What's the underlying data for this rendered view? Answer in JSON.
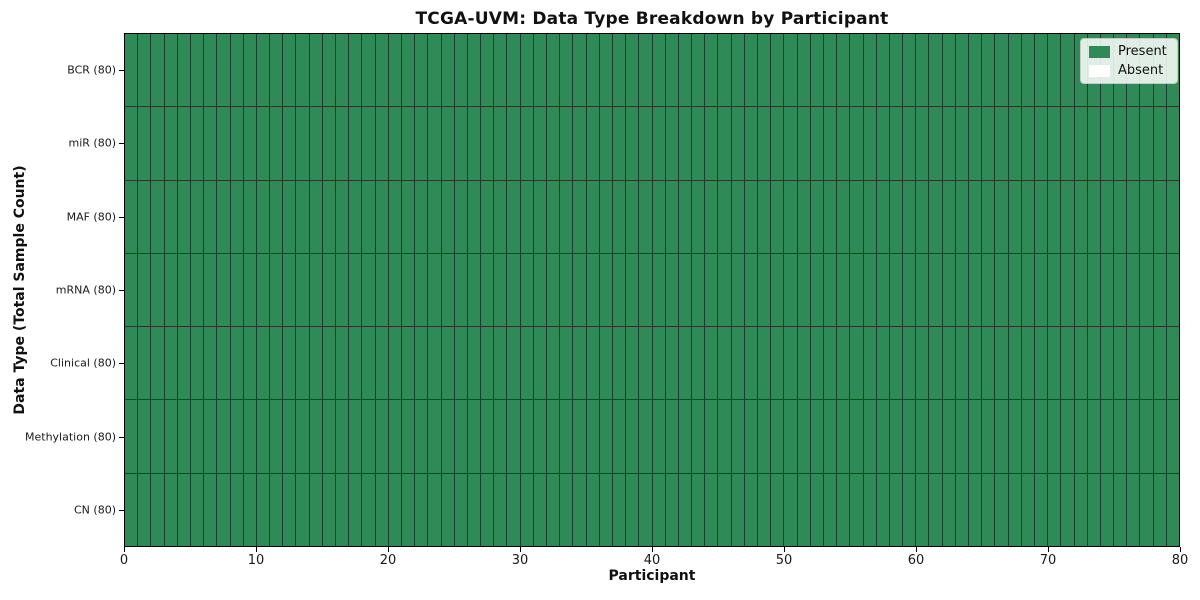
{
  "figure": {
    "title": "TCGA-UVM: Data Type Breakdown by Participant",
    "xlabel": "Participant",
    "ylabel": "Data Type (Total Sample Count)"
  },
  "legend": {
    "position": "upper-right",
    "items": [
      {
        "label": "Present",
        "color": "#2e8b57"
      },
      {
        "label": "Absent",
        "color": "#ffffff"
      }
    ]
  },
  "chart_data": {
    "type": "heatmap",
    "title": "TCGA-UVM: Data Type Breakdown by Participant",
    "xlabel": "Participant",
    "ylabel": "Data Type (Total Sample Count)",
    "n_participants": 80,
    "xlim": [
      0,
      80
    ],
    "x_ticks": [
      0,
      10,
      20,
      30,
      40,
      50,
      60,
      70,
      80
    ],
    "grid": "cell-borders",
    "legend_position": "upper right",
    "cell_colors": {
      "present": "#2e8b57",
      "absent": "#ffffff"
    },
    "rows": [
      {
        "label": "BCR (80)",
        "data_type": "BCR",
        "total_samples": 80,
        "present_count": 80,
        "absent_count": 0
      },
      {
        "label": "miR (80)",
        "data_type": "miR",
        "total_samples": 80,
        "present_count": 80,
        "absent_count": 0
      },
      {
        "label": "MAF (80)",
        "data_type": "MAF",
        "total_samples": 80,
        "present_count": 80,
        "absent_count": 0
      },
      {
        "label": "mRNA (80)",
        "data_type": "mRNA",
        "total_samples": 80,
        "present_count": 80,
        "absent_count": 0
      },
      {
        "label": "Clinical (80)",
        "data_type": "Clinical",
        "total_samples": 80,
        "present_count": 80,
        "absent_count": 0
      },
      {
        "label": "Methylation (80)",
        "data_type": "Methylation",
        "total_samples": 80,
        "present_count": 80,
        "absent_count": 0
      },
      {
        "label": "CN (80)",
        "data_type": "CN",
        "total_samples": 80,
        "present_count": 80,
        "absent_count": 0
      }
    ]
  }
}
